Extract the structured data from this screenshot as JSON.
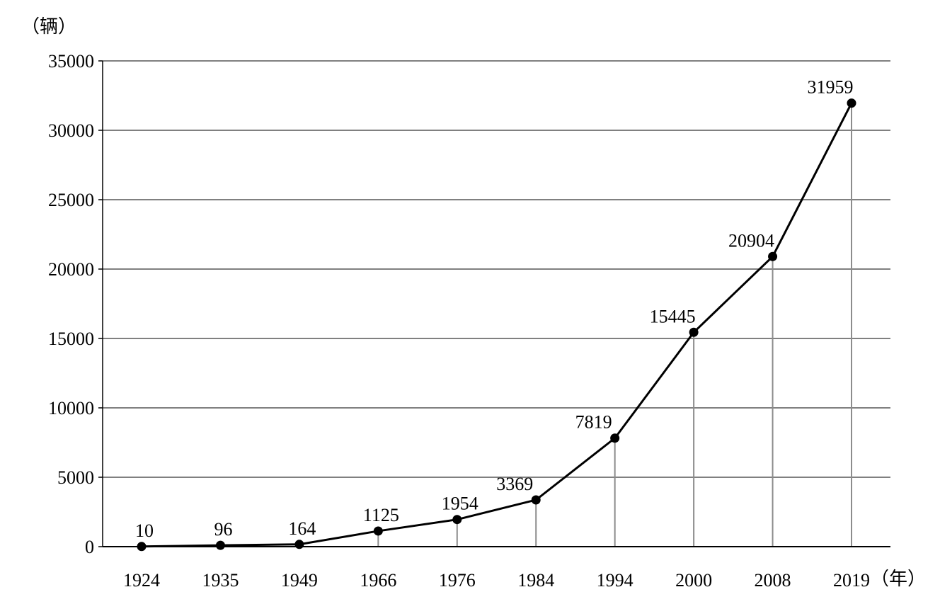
{
  "chart_data": {
    "type": "line",
    "title": "",
    "ylabel": "（辆）",
    "xlabel": "（年）",
    "categories": [
      "1924",
      "1935",
      "1949",
      "1966",
      "1976",
      "1984",
      "1994",
      "2000",
      "2008",
      "2019"
    ],
    "series": [
      {
        "values": [
          10,
          96,
          164,
          1125,
          1954,
          3369,
          7819,
          15445,
          20904,
          31959
        ]
      }
    ],
    "data_labels": [
      "10",
      "96",
      "164",
      "1125",
      "1954",
      "3369",
      "7819",
      "15445",
      "20904",
      "31959"
    ],
    "ylim": [
      0,
      35000
    ],
    "y_ticks": [
      "0",
      "5000",
      "10000",
      "15000",
      "20000",
      "25000",
      "30000",
      "35000"
    ],
    "grid": true,
    "drop_lines": true,
    "legend": "none",
    "colors": {
      "line": "#000000",
      "grid": "#808080",
      "drop_line": "#8c8c8c",
      "marker": "#000000"
    }
  }
}
